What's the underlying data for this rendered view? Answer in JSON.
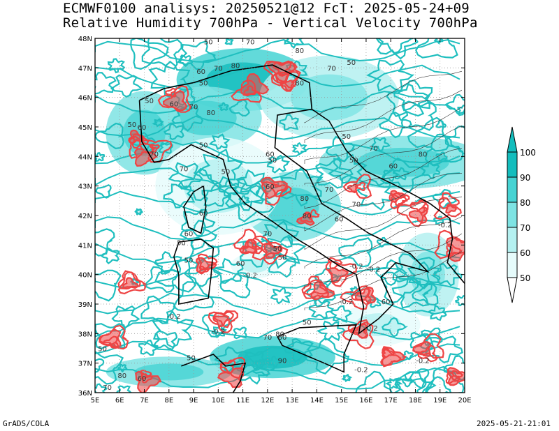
{
  "title_line1": "ECMWF0100 analisys: 20250521@12 FcT: 2025-05-24+09",
  "title_line2": "Relative Humidity 700hPa - Vertical Velocity 700hPa",
  "footer_left": "GrADS/COLA",
  "footer_right": "2025-05-21-21:01",
  "colors": {
    "rh_line": "#1fbfbf",
    "omega_line": "#ee4444",
    "coast": "#000000",
    "rh_fill": [
      "#e6fbfb",
      "#b4f0f0",
      "#7ee3e3",
      "#46d3d3",
      "#13bdbd"
    ]
  },
  "chart_data": {
    "type": "heatmap",
    "map_extent": {
      "lon": [
        5,
        20
      ],
      "lat": [
        36,
        48
      ]
    },
    "x_ticks": [
      "5E",
      "6E",
      "7E",
      "8E",
      "9E",
      "10E",
      "11E",
      "12E",
      "13E",
      "14E",
      "15E",
      "16E",
      "17E",
      "18E",
      "19E",
      "20E"
    ],
    "y_ticks": [
      "36N",
      "37N",
      "38N",
      "39N",
      "40N",
      "41N",
      "42N",
      "43N",
      "44N",
      "45N",
      "46N",
      "47N",
      "48N"
    ],
    "grid": true,
    "colorbar": {
      "orientation": "vertical",
      "placement": "right",
      "labels": [
        "50",
        "60",
        "70",
        "80",
        "90",
        "100"
      ]
    },
    "contour_labels": [
      {
        "text": "50",
        "lon": 9.6,
        "lat": 47.8
      },
      {
        "text": "70",
        "lon": 11.3,
        "lat": 47.8
      },
      {
        "text": "80",
        "lon": 13.3,
        "lat": 47.5
      },
      {
        "text": "50",
        "lon": 15.4,
        "lat": 47.1
      },
      {
        "text": "70",
        "lon": 14.6,
        "lat": 46.9
      },
      {
        "text": "80",
        "lon": 10.7,
        "lat": 47.0
      },
      {
        "text": "60",
        "lon": 9.3,
        "lat": 46.8
      },
      {
        "text": "70",
        "lon": 10.0,
        "lat": 46.9
      },
      {
        "text": "50",
        "lon": 9.4,
        "lat": 46.4
      },
      {
        "text": "80",
        "lon": 13.3,
        "lat": 46.4
      },
      {
        "text": "50",
        "lon": 7.2,
        "lat": 45.8
      },
      {
        "text": "60",
        "lon": 8.2,
        "lat": 45.7
      },
      {
        "text": "70",
        "lon": 9.0,
        "lat": 45.6
      },
      {
        "text": "80",
        "lon": 9.7,
        "lat": 45.4
      },
      {
        "text": "50",
        "lon": 6.5,
        "lat": 45.0
      },
      {
        "text": "60",
        "lon": 6.9,
        "lat": 44.9
      },
      {
        "text": "70",
        "lon": 7.4,
        "lat": 44.0
      },
      {
        "text": "50",
        "lon": 9.4,
        "lat": 44.3
      },
      {
        "text": "60",
        "lon": 12.1,
        "lat": 44.0
      },
      {
        "text": "50",
        "lon": 12.2,
        "lat": 43.8
      },
      {
        "text": "50",
        "lon": 15.2,
        "lat": 44.6
      },
      {
        "text": "50",
        "lon": 15.5,
        "lat": 43.8
      },
      {
        "text": "70",
        "lon": 16.3,
        "lat": 44.2
      },
      {
        "text": "80",
        "lon": 18.3,
        "lat": 44.0
      },
      {
        "text": "60",
        "lon": 17.1,
        "lat": 43.6
      },
      {
        "text": "70",
        "lon": 8.6,
        "lat": 43.5
      },
      {
        "text": "50",
        "lon": 10.3,
        "lat": 43.4
      },
      {
        "text": "60",
        "lon": 12.1,
        "lat": 42.9
      },
      {
        "text": "70",
        "lon": 14.5,
        "lat": 42.8
      },
      {
        "text": "70",
        "lon": 15.6,
        "lat": 42.3
      },
      {
        "text": "80",
        "lon": 13.5,
        "lat": 42.5
      },
      {
        "text": "80",
        "lon": 13.6,
        "lat": 41.9
      },
      {
        "text": "60",
        "lon": 9.4,
        "lat": 42.0
      },
      {
        "text": "60",
        "lon": 14.9,
        "lat": 41.8
      },
      {
        "text": "60",
        "lon": 8.8,
        "lat": 41.3
      },
      {
        "text": "50",
        "lon": 8.5,
        "lat": 41.0
      },
      {
        "text": "70",
        "lon": 12.0,
        "lat": 41.3
      },
      {
        "text": "50",
        "lon": 12.4,
        "lat": 40.8
      },
      {
        "text": "50",
        "lon": 12.6,
        "lat": 40.5
      },
      {
        "text": "60",
        "lon": 10.9,
        "lat": 40.3
      },
      {
        "text": "50",
        "lon": 8.8,
        "lat": 40.4
      },
      {
        "text": "-0.2",
        "lon": 11.3,
        "lat": 39.9
      },
      {
        "text": "-0.2",
        "lon": 15.6,
        "lat": 40.2
      },
      {
        "text": "-0.2",
        "lon": 16.3,
        "lat": 40.1
      },
      {
        "text": "60",
        "lon": 16.8,
        "lat": 39.0
      },
      {
        "text": "-0.2",
        "lon": 8.2,
        "lat": 38.5
      },
      {
        "text": "-0.2",
        "lon": 15.2,
        "lat": 39.0
      },
      {
        "text": "-0.2",
        "lon": 10.0,
        "lat": 38.0
      },
      {
        "text": "50",
        "lon": 13.6,
        "lat": 38.3
      },
      {
        "text": "70",
        "lon": 12.0,
        "lat": 37.8
      },
      {
        "text": "80",
        "lon": 12.5,
        "lat": 37.9
      },
      {
        "text": "60",
        "lon": 12.6,
        "lat": 37.8
      },
      {
        "text": "-0.2",
        "lon": 16.2,
        "lat": 38.1
      },
      {
        "text": "-0.2",
        "lon": 18.3,
        "lat": 37.0
      },
      {
        "text": "90",
        "lon": 12.6,
        "lat": 37.0
      },
      {
        "text": "-0.2",
        "lon": 15.8,
        "lat": 36.7
      },
      {
        "text": "50",
        "lon": 5.3,
        "lat": 37.4
      },
      {
        "text": "50",
        "lon": 8.9,
        "lat": 37.1
      },
      {
        "text": "80",
        "lon": 6.1,
        "lat": 36.5
      },
      {
        "text": "60",
        "lon": 6.9,
        "lat": 36.4
      },
      {
        "text": "70",
        "lon": 5.5,
        "lat": 36.1
      },
      {
        "text": "-0.2",
        "lon": 19.2,
        "lat": 41.6
      }
    ]
  }
}
